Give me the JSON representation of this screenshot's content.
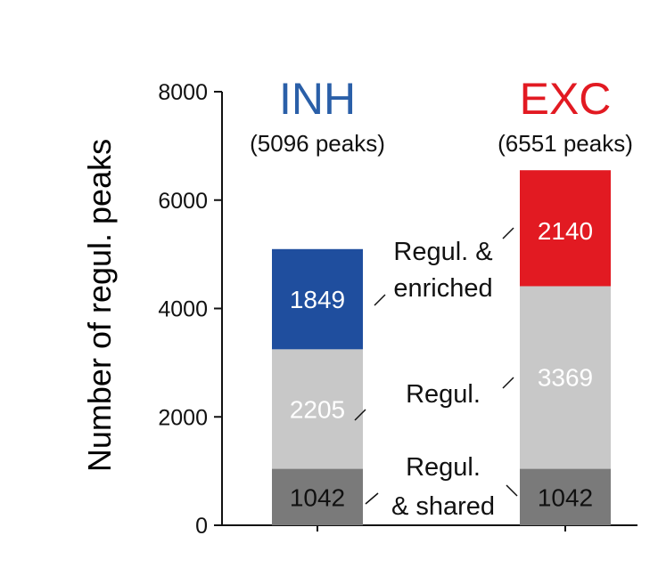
{
  "chart_data": {
    "type": "bar",
    "stacked": true,
    "ylabel": "Number of regul. peaks",
    "ylim": [
      0,
      8000
    ],
    "yticks": [
      0,
      2000,
      4000,
      6000,
      8000
    ],
    "categories": [
      "INH",
      "EXC"
    ],
    "category_subtitles": [
      "(5096 peaks)",
      "(6551 peaks)"
    ],
    "category_colors": [
      "#2a5fa8",
      "#e21a22"
    ],
    "series": [
      {
        "name": "Regul. & shared",
        "values": [
          1042,
          1042
        ],
        "colors": [
          "#7a7a7a",
          "#7a7a7a"
        ],
        "label_colors": [
          "#111111",
          "#111111"
        ]
      },
      {
        "name": "Regul.",
        "values": [
          2205,
          3369
        ],
        "colors": [
          "#c8c8c8",
          "#c8c8c8"
        ],
        "label_colors": [
          "#ffffff",
          "#ffffff"
        ]
      },
      {
        "name": "Regul. & enriched",
        "values": [
          1849,
          2140
        ],
        "colors": [
          "#1f4e9e",
          "#e21a22"
        ],
        "label_colors": [
          "#ffffff",
          "#ffffff"
        ]
      }
    ],
    "annotations": [
      {
        "lines": [
          "Regul. &",
          "enriched"
        ]
      },
      {
        "lines": [
          "Regul."
        ]
      },
      {
        "lines": [
          "Regul.",
          "& shared"
        ]
      }
    ]
  }
}
